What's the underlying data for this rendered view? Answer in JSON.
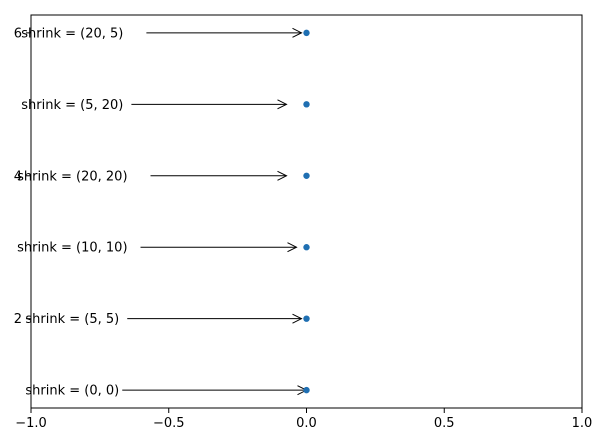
{
  "chart_data": {
    "type": "scatter",
    "title": "",
    "xlabel": "",
    "ylabel": "",
    "xlim": [
      -1.0,
      1.0
    ],
    "ylim": [
      0.75,
      6.25
    ],
    "grid": false,
    "xticks": [
      -1.0,
      -0.5,
      0.0,
      0.5,
      1.0
    ],
    "xtick_labels": [
      "−1.0",
      "−0.5",
      "0.0",
      "0.5",
      "1.0"
    ],
    "yticks": [
      2,
      4,
      6
    ],
    "ytick_labels": [
      "2",
      "4",
      "6"
    ],
    "points": [
      {
        "x": 0,
        "y": 1
      },
      {
        "x": 0,
        "y": 2
      },
      {
        "x": 0,
        "y": 3
      },
      {
        "x": 0,
        "y": 4
      },
      {
        "x": 0,
        "y": 5
      },
      {
        "x": 0,
        "y": 6
      }
    ],
    "annotations": [
      {
        "text": "shrink = (0, 0)",
        "y": 1,
        "shrinkA": 0,
        "shrinkB": 0
      },
      {
        "text": "shrink = (5, 5)",
        "y": 2,
        "shrinkA": 5,
        "shrinkB": 5
      },
      {
        "text": "shrink = (10, 10)",
        "y": 3,
        "shrinkA": 10,
        "shrinkB": 10
      },
      {
        "text": "shrink = (20, 20)",
        "y": 4,
        "shrinkA": 20,
        "shrinkB": 20
      },
      {
        "text": "shrink = (5, 20)",
        "y": 5,
        "shrinkA": 5,
        "shrinkB": 20
      },
      {
        "text": "shrink = (20, 5)",
        "y": 6,
        "shrinkA": 20,
        "shrinkB": 5
      }
    ],
    "annotation_text_x": -0.85
  }
}
